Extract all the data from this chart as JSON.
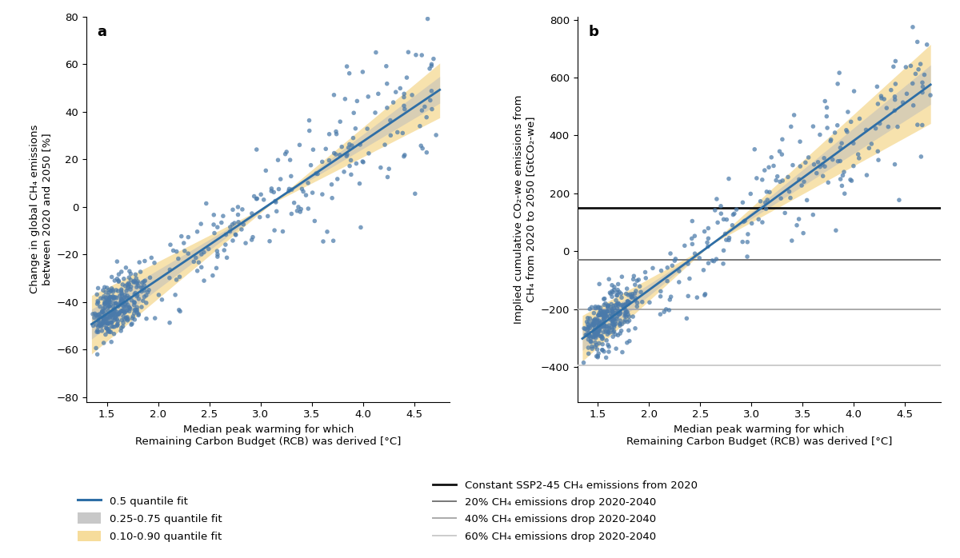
{
  "panel_a_label": "a",
  "panel_b_label": "b",
  "xlabel": "Median peak warming for which\nRemaining Carbon Budget (RCB) was derived [°C]",
  "ylabel_a": "Change in global CH₄ emissions\nbetween 2020 and 2050 [%]",
  "ylabel_b": "Implied cumulative CO₂-we emissions from\nCH₄ from 2020 to 2050 [GtCO₂-we]",
  "xlim": [
    1.3,
    4.85
  ],
  "ylim_a": [
    -82,
    72
  ],
  "ylim_b": [
    -520,
    810
  ],
  "xticks": [
    1.5,
    2.0,
    2.5,
    3.0,
    3.5,
    4.0,
    4.5
  ],
  "yticks_a": [
    -80,
    -60,
    -40,
    -20,
    0,
    20,
    40,
    60,
    80
  ],
  "yticks_b": [
    -400,
    -200,
    0,
    200,
    400,
    600,
    800
  ],
  "scatter_color": "#4a7aaa",
  "scatter_alpha": 0.72,
  "scatter_size": 16,
  "scatter_edgecolor": "none",
  "line_color": "#2e6ea6",
  "line_width": 2.0,
  "band_inner_color": "#bbbbbb",
  "band_inner_alpha": 0.5,
  "band_outer_color": "#f5d68a",
  "band_outer_alpha": 0.7,
  "fit_x": [
    1.35,
    4.75
  ],
  "fit_a_slope_median": 29.0,
  "fit_a_intercept_median": -88.5,
  "fit_a_slope_q25": 25.5,
  "fit_a_intercept_q25": -77.5,
  "fit_a_slope_q75": 32.5,
  "fit_a_intercept_q75": -99.5,
  "fit_a_slope_q10": 22.0,
  "fit_a_intercept_q10": -67.0,
  "fit_a_slope_q90": 36.0,
  "fit_a_intercept_q90": -110.5,
  "fit_b_slope_median": 258.0,
  "fit_b_intercept_median": -650.0,
  "fit_b_slope_q25": 226.0,
  "fit_b_intercept_q25": -566.0,
  "fit_b_slope_q75": 290.0,
  "fit_b_intercept_q75": -734.0,
  "fit_b_slope_q10": 195.0,
  "fit_b_intercept_q10": -485.0,
  "fit_b_slope_q90": 322.0,
  "fit_b_intercept_q90": -815.0,
  "hlines_b": [
    {
      "y": 150,
      "color": "#111111",
      "lw": 2.0,
      "label": "Constant SSP2-45 CH₄ emissions from 2020"
    },
    {
      "y": -30,
      "color": "#777777",
      "lw": 1.4,
      "label": "20% CH₄ emissions drop 2020-2040"
    },
    {
      "y": -200,
      "color": "#aaaaaa",
      "lw": 1.4,
      "label": "40% CH₄ emissions drop 2020-2040"
    },
    {
      "y": -395,
      "color": "#cccccc",
      "lw": 1.4,
      "label": "60% CH₄ emissions drop 2020-2040"
    }
  ],
  "background_color": "#ffffff",
  "seed": 42,
  "n_points": 500
}
